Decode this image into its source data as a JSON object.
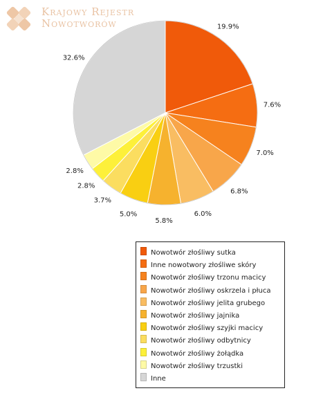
{
  "logo": {
    "line1": "Krajowy Rejestr",
    "line2": "Nowotworów"
  },
  "chart_data": {
    "type": "pie",
    "start_angle_deg": 0,
    "direction": "clockwise",
    "slices": [
      {
        "label": "Nowotwór złośliwy sutka",
        "value": 19.9,
        "value_label": "19.9%",
        "color": "#f05a0a"
      },
      {
        "label": "Inne nowotwory złośliwe skóry",
        "value": 7.6,
        "value_label": "7.6%",
        "color": "#f56d12"
      },
      {
        "label": "Nowotwór złośliwy trzonu macicy",
        "value": 7.0,
        "value_label": "7.0%",
        "color": "#f6821e"
      },
      {
        "label": "Nowotwór złośliwy oskrzela i płuca",
        "value": 6.8,
        "value_label": "6.8%",
        "color": "#f8a64a"
      },
      {
        "label": "Nowotwór złośliwy jelita grubego",
        "value": 6.0,
        "value_label": "6.0%",
        "color": "#f9bd62"
      },
      {
        "label": "Nowotwór złośliwy jajnika",
        "value": 5.8,
        "value_label": "5.8%",
        "color": "#f6b22e"
      },
      {
        "label": "Nowotwór złośliwy szyjki macicy",
        "value": 5.0,
        "value_label": "5.0%",
        "color": "#f9cf12"
      },
      {
        "label": "Nowotwór złośliwy odbytnicy",
        "value": 3.7,
        "value_label": "3.7%",
        "color": "#fbdd60"
      },
      {
        "label": "Nowotwór złośliwy żołądka",
        "value": 2.8,
        "value_label": "2.8%",
        "color": "#fdf03a"
      },
      {
        "label": "Nowotwór złośliwy trzustki",
        "value": 2.8,
        "value_label": "2.8%",
        "color": "#fefaa6"
      },
      {
        "label": "Inne",
        "value": 32.6,
        "value_label": "32.6%",
        "color": "#d6d6d6"
      }
    ],
    "legend_position": "bottom-right"
  }
}
